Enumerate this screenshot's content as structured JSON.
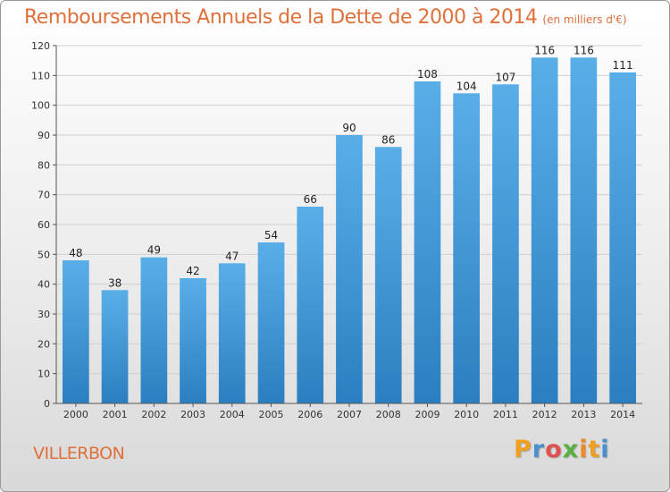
{
  "header": {
    "title": "Remboursements Annuels de la Dette de 2000 à 2014",
    "subtitle": "(en milliers d'€)"
  },
  "footer": {
    "commune": "VILLERBON",
    "logo_text": "Proxiti"
  },
  "colors": {
    "title": "#e0703a",
    "bar_top": "#5aaee8",
    "bar_bottom": "#2b7fc0",
    "axis": "#555555",
    "grid": "#cfcfcf"
  },
  "chart_data": {
    "type": "bar",
    "title": "Remboursements Annuels de la Dette de 2000 à 2014",
    "subtitle": "(en milliers d'€)",
    "categories": [
      "2000",
      "2001",
      "2002",
      "2003",
      "2004",
      "2005",
      "2006",
      "2007",
      "2008",
      "2009",
      "2010",
      "2011",
      "2012",
      "2013",
      "2014"
    ],
    "values": [
      48,
      38,
      49,
      42,
      47,
      54,
      66,
      90,
      86,
      108,
      104,
      107,
      116,
      116,
      111
    ],
    "ylim": [
      0,
      120
    ],
    "yticks": [
      0,
      10,
      20,
      30,
      40,
      50,
      60,
      70,
      80,
      90,
      100,
      110,
      120
    ],
    "xlabel": "",
    "ylabel": "",
    "grid": true,
    "legend": "none"
  }
}
